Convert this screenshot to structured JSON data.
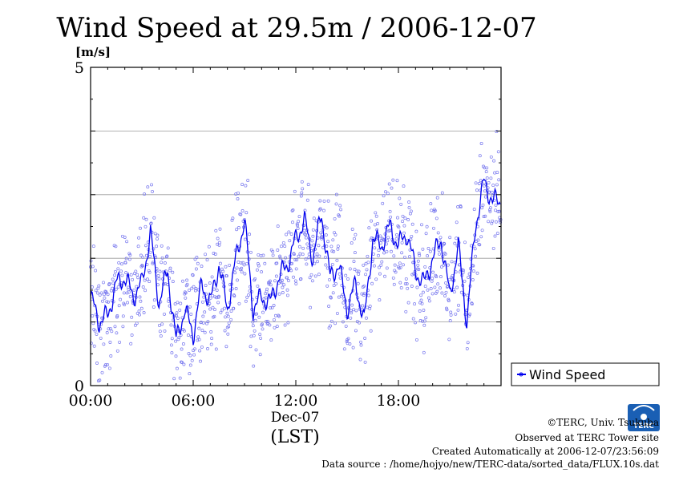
{
  "title": "Wind Speed at 29.5m / 2006-12-07",
  "chart_data": {
    "type": "scatter",
    "title": "Wind Speed at 29.5m / 2006-12-07",
    "ylabel": "[m/s]",
    "xlabel": "(LST)",
    "x_date_label": "Dec-07",
    "xlim": [
      "00:00",
      "24:00"
    ],
    "ylim": [
      0,
      5
    ],
    "x_ticks": [
      "00:00",
      "06:00",
      "12:00",
      "18:00"
    ],
    "y_ticks": [
      0,
      5
    ],
    "grid": true,
    "legend_position": "right",
    "series": [
      {
        "name": "Wind Speed",
        "color": "#0000ee",
        "marker_color": "#7777ee",
        "x": [
          "00:00",
          "00:30",
          "01:00",
          "01:30",
          "02:00",
          "02:30",
          "03:00",
          "03:30",
          "04:00",
          "04:30",
          "05:00",
          "05:30",
          "06:00",
          "06:30",
          "07:00",
          "07:30",
          "08:00",
          "08:30",
          "09:00",
          "09:30",
          "10:00",
          "10:30",
          "11:00",
          "11:30",
          "12:00",
          "12:30",
          "13:00",
          "13:30",
          "14:00",
          "14:30",
          "15:00",
          "15:30",
          "16:00",
          "16:30",
          "17:00",
          "17:30",
          "18:00",
          "18:30",
          "19:00",
          "19:30",
          "20:00",
          "20:30",
          "21:00",
          "21:30",
          "22:00",
          "22:30",
          "23:00",
          "23:30",
          "24:00"
        ],
        "values": [
          1.4,
          1.0,
          1.1,
          1.6,
          1.7,
          1.4,
          1.6,
          2.4,
          1.3,
          1.8,
          0.7,
          1.2,
          0.8,
          1.6,
          1.3,
          1.9,
          1.2,
          2.0,
          2.6,
          1.2,
          1.4,
          1.3,
          1.7,
          1.9,
          2.3,
          2.6,
          2.0,
          2.7,
          1.7,
          1.9,
          1.2,
          1.6,
          1.0,
          2.3,
          2.2,
          2.5,
          2.2,
          2.4,
          1.8,
          1.6,
          2.0,
          2.3,
          1.4,
          2.2,
          1.0,
          2.5,
          3.2,
          2.9,
          2.9
        ]
      }
    ]
  },
  "credits": {
    "copyright": "©TERC, Univ. Tsukuba",
    "observed": "Observed at TERC Tower site",
    "created": "Created Automatically at 2006-12-07/23:56:09",
    "source": "Data source : /home/hojyo/new/TERC-data/sorted_data/FLUX.10s.dat"
  },
  "logo": {
    "text": "TERC",
    "color": "#1a5fb4"
  }
}
